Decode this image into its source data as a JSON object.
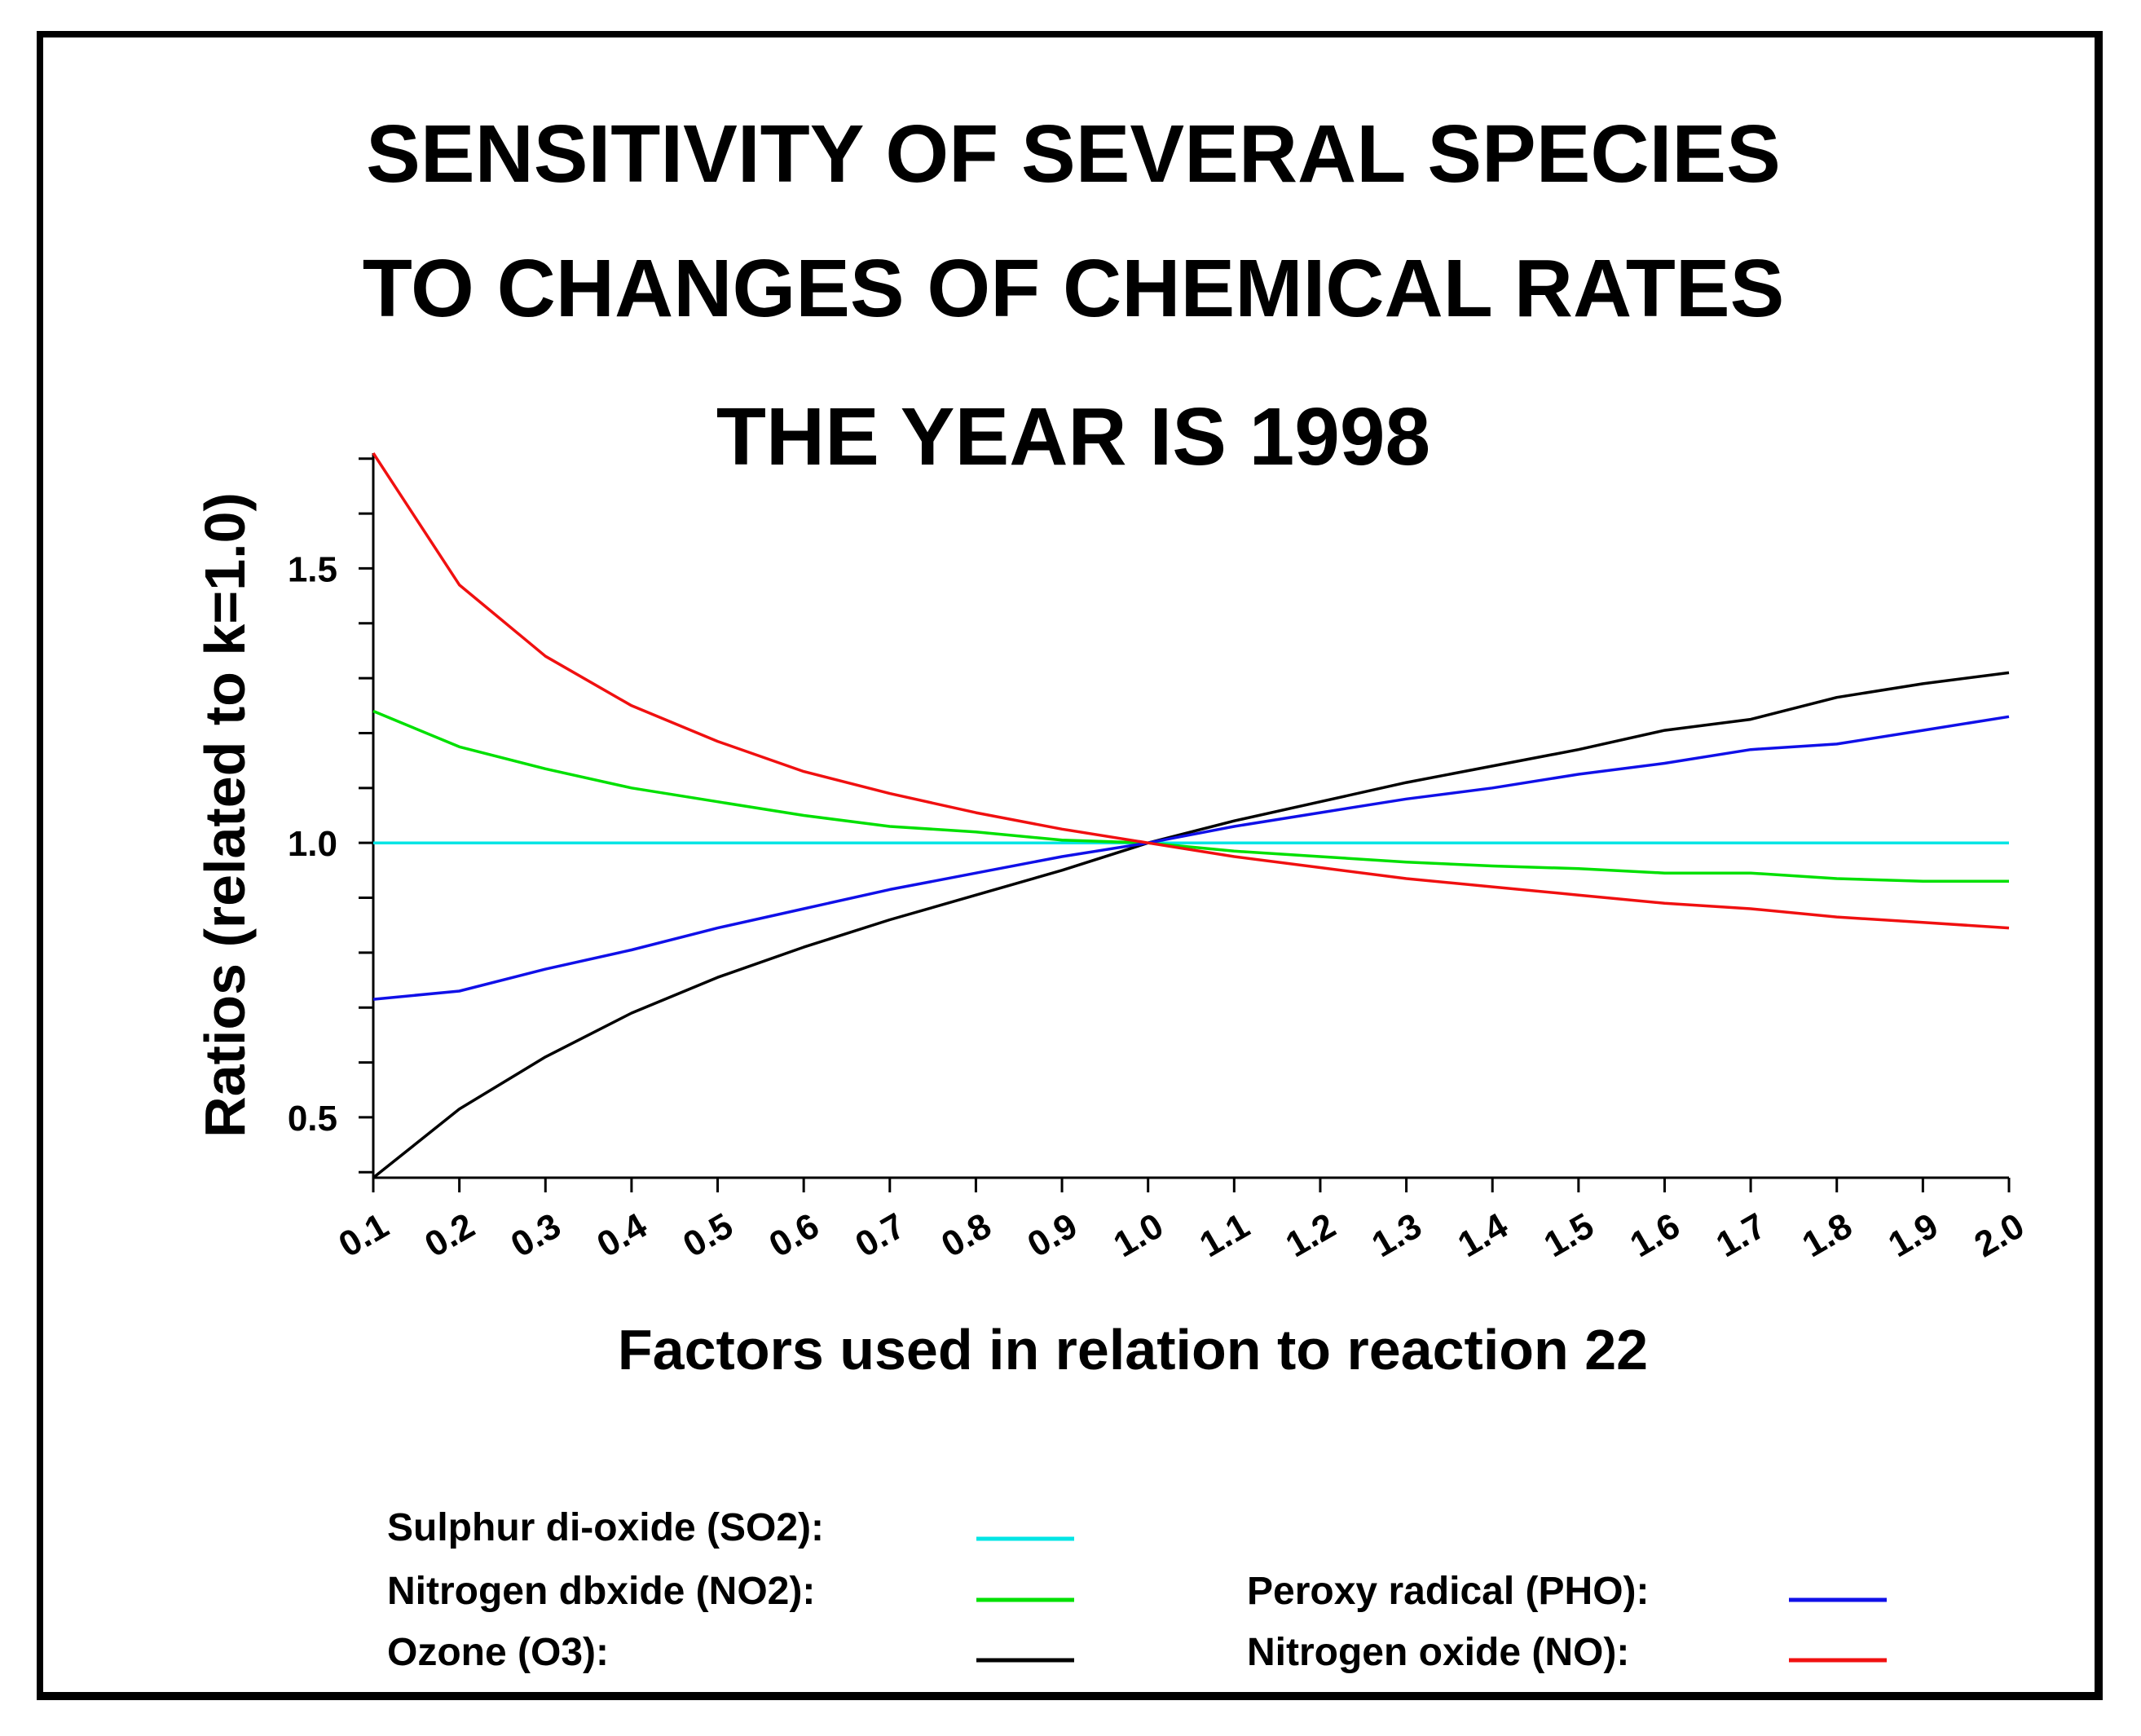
{
  "chart_data": {
    "type": "line",
    "title_lines": [
      "SENSITIVITY OF SEVERAL SPECIES",
      "TO CHANGES OF CHEMICAL RATES",
      "THE YEAR IS 1998"
    ],
    "xlabel": "Factors used in relation to reaction 22",
    "ylabel": "Ratios (related to k=1.0)",
    "xlim": [
      0.1,
      2.0
    ],
    "ylim": [
      0.39,
      1.71
    ],
    "x_ticks": [
      "0.1",
      "0.2",
      "0.3",
      "0.4",
      "0.5",
      "0.6",
      "0.7",
      "0.8",
      "0.9",
      "1.0",
      "1.1",
      "1.2",
      "1.3",
      "1.4",
      "1.5",
      "1.6",
      "1.7",
      "1.8",
      "1.9",
      "2.0"
    ],
    "y_ticks": [
      "0.5",
      "1.0",
      "1.5"
    ],
    "x": [
      0.1,
      0.2,
      0.3,
      0.4,
      0.5,
      0.6,
      0.7,
      0.8,
      0.9,
      1.0,
      1.1,
      1.2,
      1.3,
      1.4,
      1.5,
      1.6,
      1.7,
      1.8,
      1.9,
      2.0
    ],
    "series": [
      {
        "name": "Sulphur di-oxide (SO2):",
        "color": "#00e5e5",
        "values": [
          1.0,
          1.0,
          1.0,
          1.0,
          1.0,
          1.0,
          1.0,
          1.0,
          1.0,
          1.0,
          1.0,
          1.0,
          1.0,
          1.0,
          1.0,
          1.0,
          1.0,
          1.0,
          1.0,
          1.0
        ]
      },
      {
        "name": "Nitrogen dbxide (NO2):",
        "color": "#00e000",
        "values": [
          1.24,
          1.175,
          1.135,
          1.1,
          1.075,
          1.05,
          1.03,
          1.02,
          1.005,
          1.0,
          0.985,
          0.975,
          0.965,
          0.958,
          0.953,
          0.945,
          0.945,
          0.935,
          0.93,
          0.93
        ]
      },
      {
        "name": "Ozone (O3):",
        "color": "#000000",
        "values": [
          0.39,
          0.515,
          0.61,
          0.69,
          0.755,
          0.81,
          0.86,
          0.905,
          0.95,
          1.0,
          1.04,
          1.075,
          1.11,
          1.14,
          1.17,
          1.205,
          1.225,
          1.265,
          1.29,
          1.31
        ]
      },
      {
        "name": "Peroxy radical (PHO):",
        "color": "#1010e8",
        "values": [
          0.715,
          0.73,
          0.77,
          0.805,
          0.845,
          0.88,
          0.915,
          0.945,
          0.975,
          1.0,
          1.03,
          1.055,
          1.08,
          1.1,
          1.125,
          1.145,
          1.17,
          1.18,
          1.205,
          1.23
        ]
      },
      {
        "name": "Nitrogen oxide (NO):",
        "color": "#f01010",
        "values": [
          1.71,
          1.47,
          1.34,
          1.25,
          1.185,
          1.13,
          1.09,
          1.055,
          1.025,
          1.0,
          0.975,
          0.955,
          0.935,
          0.92,
          0.905,
          0.89,
          0.88,
          0.865,
          0.855,
          0.845
        ]
      }
    ],
    "legend_position": "bottom"
  }
}
